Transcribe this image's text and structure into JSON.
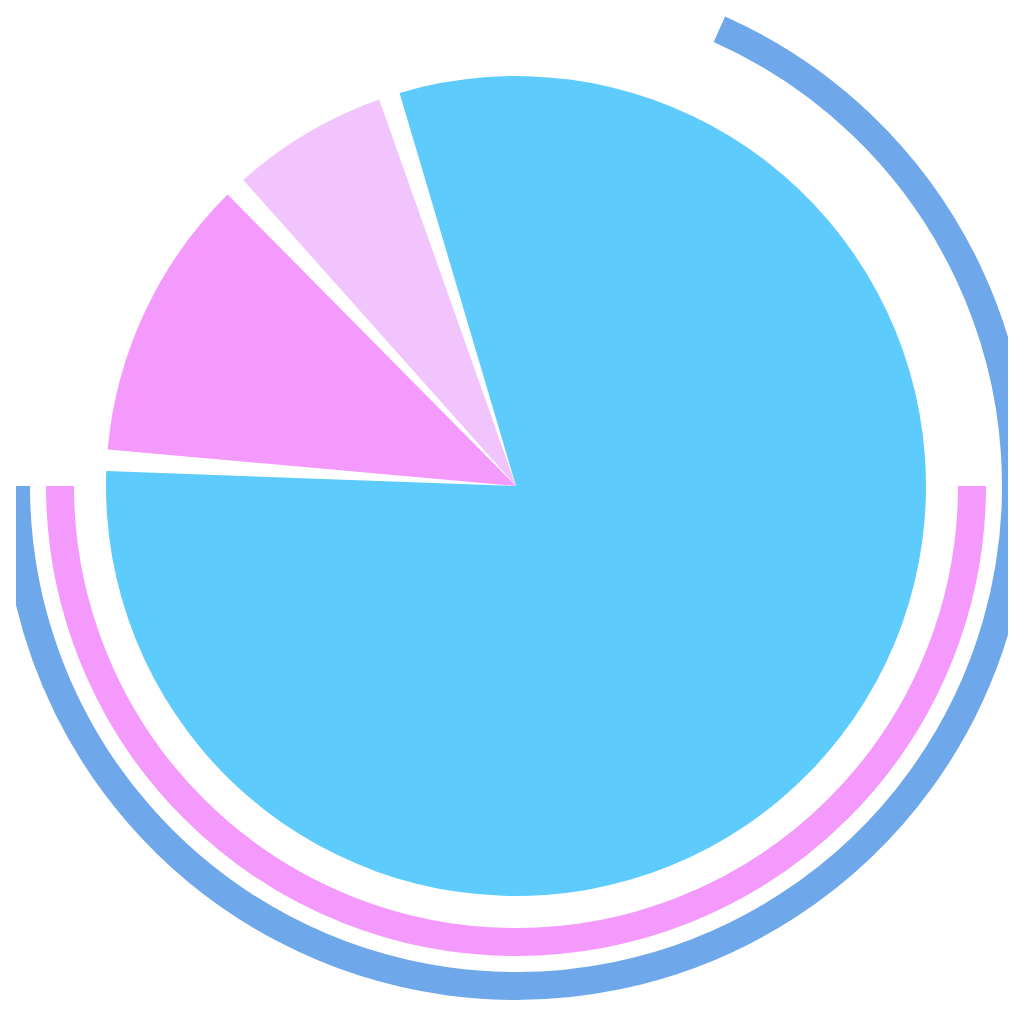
{
  "chart_data": {
    "type": "pie",
    "categories": [
      null,
      null,
      null
    ],
    "values": [
      81,
      12,
      7
    ],
    "colors": [
      "#5ecbfd",
      "#f49afc",
      "#f2c4fd"
    ]
  }
}
